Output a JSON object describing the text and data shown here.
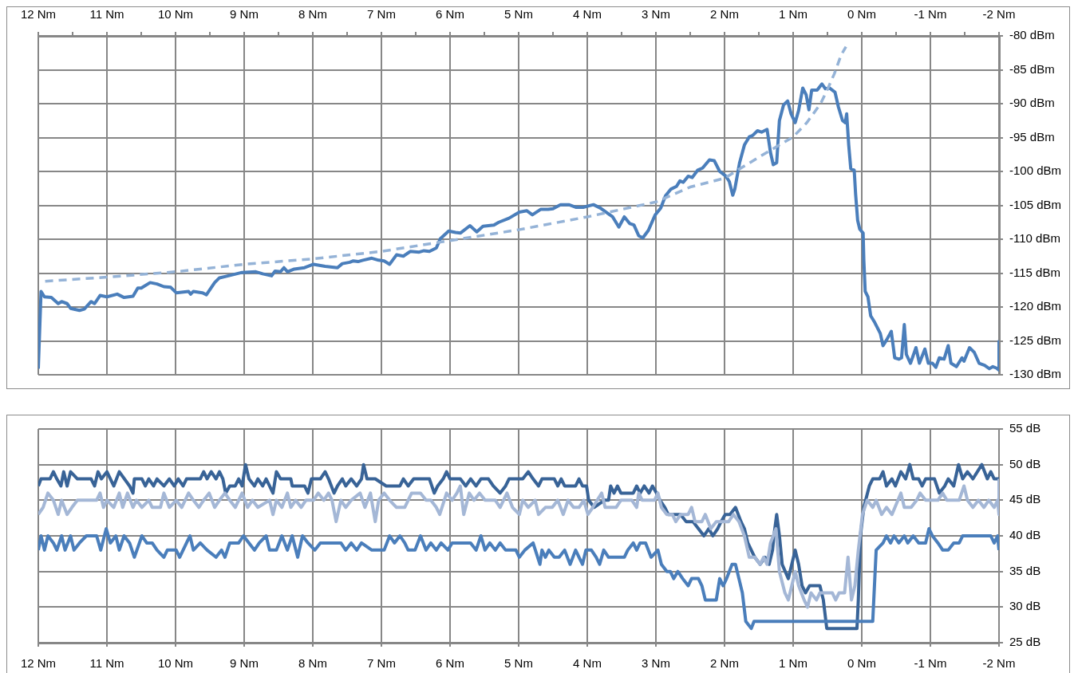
{
  "chart_data": [
    {
      "type": "line",
      "grid": true,
      "xlim": [
        12,
        -2
      ],
      "xticks": [
        {
          "value": 12,
          "label": "12 Nm"
        },
        {
          "value": 11.5,
          "label": null
        },
        {
          "value": 11,
          "label": "11 Nm"
        },
        {
          "value": 10.5,
          "label": null
        },
        {
          "value": 10,
          "label": "10 Nm"
        },
        {
          "value": 9.5,
          "label": null
        },
        {
          "value": 9,
          "label": "9 Nm"
        },
        {
          "value": 8.5,
          "label": null
        },
        {
          "value": 8,
          "label": "8 Nm"
        },
        {
          "value": 7.5,
          "label": null
        },
        {
          "value": 7,
          "label": "7 Nm"
        },
        {
          "value": 6.5,
          "label": null
        },
        {
          "value": 6,
          "label": "6 Nm"
        },
        {
          "value": 5.5,
          "label": null
        },
        {
          "value": 5,
          "label": "5 Nm"
        },
        {
          "value": 4.5,
          "label": null
        },
        {
          "value": 4,
          "label": "4 Nm"
        },
        {
          "value": 3.5,
          "label": null
        },
        {
          "value": 3,
          "label": "3 Nm"
        },
        {
          "value": 2.5,
          "label": null
        },
        {
          "value": 2,
          "label": "2 Nm"
        },
        {
          "value": 1.5,
          "label": null
        },
        {
          "value": 1,
          "label": "1 Nm"
        },
        {
          "value": 0.5,
          "label": null
        },
        {
          "value": 0,
          "label": "0 Nm"
        },
        {
          "value": -0.5,
          "label": null
        },
        {
          "value": -1,
          "label": "-1 Nm"
        },
        {
          "value": -1.5,
          "label": null
        },
        {
          "value": -2,
          "label": "-2 Nm"
        }
      ],
      "ylim": [
        -130,
        -80
      ],
      "yticks": [
        {
          "value": -130,
          "label": "-130 dBm"
        },
        {
          "value": -125,
          "label": "-125 dBm"
        },
        {
          "value": -120,
          "label": "-120 dBm"
        },
        {
          "value": -115,
          "label": "-115 dBm"
        },
        {
          "value": -110,
          "label": "-110 dBm"
        },
        {
          "value": -105,
          "label": "-105 dBm"
        },
        {
          "value": -100,
          "label": "-100 dBm"
        },
        {
          "value": -95,
          "label": "-95 dBm"
        },
        {
          "value": -90,
          "label": "-90 dBm"
        },
        {
          "value": -85,
          "label": "-85 dBm"
        },
        {
          "value": -80,
          "label": "-80 dBm"
        }
      ],
      "series": [
        {
          "color": "#4a7ebb",
          "x": [
            12,
            11.96,
            11.91,
            11.81,
            11.71,
            11.66,
            11.58,
            11.53,
            11.4,
            11.33,
            11.23,
            11.18,
            11.1,
            11,
            10.85,
            10.75,
            10.62,
            10.55,
            10.5,
            10.37,
            10.27,
            10.17,
            10.07,
            9.99,
            9.81,
            9.78,
            9.74,
            9.61,
            9.55,
            9.43,
            9.36,
            9.23,
            9.03,
            8.83,
            8.73,
            8.6,
            8.55,
            8.47,
            8.42,
            8.37,
            8.27,
            8.12,
            7.99,
            7.82,
            7.64,
            7.57,
            7.46,
            7.41,
            7.34,
            7.27,
            7.14,
            7.04,
            6.96,
            6.88,
            6.78,
            6.68,
            6.58,
            6.45,
            6.38,
            6.3,
            6.2,
            6.14,
            6.02,
            5.92,
            5.85,
            5.71,
            5.61,
            5.52,
            5.44,
            5.36,
            5.29,
            5.14,
            4.99,
            4.88,
            4.8,
            4.68,
            4.57,
            4.5,
            4.39,
            4.27,
            4.16,
            4.06,
            3.91,
            3.81,
            3.7,
            3.63,
            3.54,
            3.46,
            3.38,
            3.32,
            3.25,
            3.19,
            3.11,
            3.01,
            2.93,
            2.86,
            2.78,
            2.7,
            2.65,
            2.6,
            2.53,
            2.47,
            2.39,
            2.32,
            2.22,
            2.15,
            2.07,
            1.98,
            1.93,
            1.88,
            1.85,
            1.78,
            1.71,
            1.64,
            1.59,
            1.52,
            1.46,
            1.38,
            1.33,
            1.29,
            1.24,
            1.2,
            1.14,
            1.08,
            1.03,
            0.97,
            0.92,
            0.86,
            0.81,
            0.77,
            0.73,
            0.65,
            0.58,
            0.53,
            0.47,
            0.39,
            0.34,
            0.28,
            0.24,
            0.22,
            0.19,
            0.16,
            0.11,
            0.09,
            0.06,
            0.03,
            -0.02,
            -0.03,
            -0.05,
            -0.09,
            -0.13,
            -0.19,
            -0.27,
            -0.31,
            -0.36,
            -0.43,
            -0.48,
            -0.54,
            -0.58,
            -0.62,
            -0.65,
            -0.71,
            -0.79,
            -0.84,
            -0.92,
            -0.97,
            -1.03,
            -1.08,
            -1.13,
            -1.2,
            -1.26,
            -1.3,
            -1.38,
            -1.46,
            -1.49,
            -1.57,
            -1.64,
            -1.71,
            -1.79,
            -1.86,
            -1.91,
            -1.96,
            -2,
            -2
          ],
          "values": [
            -129.1,
            -117.7,
            -118.5,
            -118.6,
            -119.5,
            -119.2,
            -119.5,
            -120.2,
            -120.5,
            -120.3,
            -119.2,
            -119.5,
            -118.3,
            -118.5,
            -118.1,
            -118.6,
            -118.4,
            -117.2,
            -117.2,
            -116.4,
            -116.6,
            -117,
            -117.1,
            -117.9,
            -117.7,
            -118.1,
            -117.7,
            -117.9,
            -118.2,
            -116.4,
            -115.7,
            -115.4,
            -114.9,
            -114.8,
            -115.1,
            -115.4,
            -114.7,
            -114.8,
            -114.2,
            -114.8,
            -114.4,
            -114.2,
            -113.7,
            -114,
            -114.2,
            -113.6,
            -113.4,
            -113.2,
            -113.3,
            -113.1,
            -112.8,
            -113.1,
            -113.2,
            -113.7,
            -112.3,
            -112.5,
            -111.8,
            -111.9,
            -111.7,
            -111.8,
            -111.3,
            -109.9,
            -108.8,
            -109,
            -109.1,
            -108,
            -108.9,
            -108.1,
            -108,
            -107.9,
            -107.5,
            -106.9,
            -106,
            -105.8,
            -106.4,
            -105.6,
            -105.6,
            -105.5,
            -104.9,
            -104.9,
            -105.3,
            -105.3,
            -104.9,
            -105.4,
            -106.2,
            -106.7,
            -108.2,
            -106.7,
            -107.7,
            -107.9,
            -109.5,
            -109.8,
            -108.7,
            -106.4,
            -105.4,
            -103.6,
            -102.6,
            -102.2,
            -101.4,
            -101.6,
            -100.7,
            -100.9,
            -99.8,
            -99.5,
            -98.3,
            -98.4,
            -100,
            -100.7,
            -101.5,
            -103.5,
            -102.6,
            -98.7,
            -96.1,
            -94.9,
            -94.7,
            -94,
            -94.2,
            -93.8,
            -97.2,
            -99,
            -98.7,
            -92.5,
            -90.2,
            -89.6,
            -91.5,
            -92.8,
            -91,
            -87.7,
            -88.7,
            -90.9,
            -88,
            -88,
            -87.1,
            -87.8,
            -87.7,
            -88.3,
            -90.5,
            -92.5,
            -92.8,
            -91.5,
            -96.1,
            -99.6,
            -99.8,
            -103.3,
            -107.2,
            -108.5,
            -109.1,
            -113.1,
            -117.7,
            -118.5,
            -121.3,
            -122.3,
            -123.9,
            -125.7,
            -124.9,
            -123.6,
            -127.5,
            -127.7,
            -127.5,
            -122.6,
            -127,
            -128.3,
            -126,
            -128.3,
            -126.2,
            -128.3,
            -128.3,
            -128.9,
            -127.5,
            -127.7,
            -125.7,
            -128.3,
            -128.8,
            -127.5,
            -128,
            -126,
            -126.7,
            -128.3,
            -128.6,
            -129.1,
            -128.8,
            -129,
            -129.3,
            -124.9
          ]
        },
        {
          "type": "line",
          "line_style": "dashed",
          "color": "#95b3d7",
          "x": [
            11.9,
            11,
            10,
            9,
            8,
            7,
            6,
            5,
            4,
            3,
            2.5,
            2,
            1.5,
            1,
            0.8,
            0.6,
            0.5,
            0.4,
            0.3,
            0.23
          ],
          "values": [
            -116.2,
            -115.6,
            -114.8,
            -113.7,
            -112.9,
            -111.8,
            -110.2,
            -108.6,
            -106.7,
            -104.5,
            -102.3,
            -101,
            -97.9,
            -94.9,
            -92.8,
            -90,
            -87.9,
            -85.6,
            -82.8,
            -81.6
          ]
        }
      ]
    },
    {
      "type": "line",
      "grid": true,
      "xlim": [
        12,
        -2
      ],
      "xticks": [
        {
          "value": 12,
          "label": "12 Nm"
        },
        {
          "value": 11,
          "label": "11 Nm"
        },
        {
          "value": 10,
          "label": "10 Nm"
        },
        {
          "value": 9,
          "label": "9 Nm"
        },
        {
          "value": 8,
          "label": "8 Nm"
        },
        {
          "value": 7,
          "label": "7 Nm"
        },
        {
          "value": 6,
          "label": "6 Nm"
        },
        {
          "value": 5,
          "label": "5 Nm"
        },
        {
          "value": 4,
          "label": "4 Nm"
        },
        {
          "value": 3,
          "label": "3 Nm"
        },
        {
          "value": 2,
          "label": "2 Nm"
        },
        {
          "value": 1,
          "label": "1 Nm"
        },
        {
          "value": 0,
          "label": "0 Nm"
        },
        {
          "value": -1,
          "label": "-1 Nm"
        },
        {
          "value": -2,
          "label": "-2 Nm"
        }
      ],
      "ylim": [
        25,
        55
      ],
      "yticks": [
        {
          "value": 25,
          "label": "25 dB"
        },
        {
          "value": 30,
          "label": "30 dB"
        },
        {
          "value": 35,
          "label": "35 dB"
        },
        {
          "value": 40,
          "label": "40 dB"
        },
        {
          "value": 45,
          "label": "45 dB"
        },
        {
          "value": 50,
          "label": "50 dB"
        },
        {
          "value": 55,
          "label": "55 dB"
        }
      ],
      "series": [
        {
          "color": "#386397",
          "x": [
            12,
            11.96,
            11.83,
            11.78,
            11.73,
            11.67,
            11.63,
            11.58,
            11.53,
            11.43,
            11.23,
            11.18,
            11.13,
            11.08,
            11,
            10.9,
            10.82,
            10.67,
            10.62,
            10.6,
            10.49,
            10.44,
            10.39,
            10.32,
            10.27,
            10.17,
            10.09,
            10.02,
            9.96,
            9.89,
            9.84,
            9.64,
            9.59,
            9.54,
            9.48,
            9.41,
            9.36,
            9.31,
            9.27,
            9.21,
            9.13,
            9.08,
            9.03,
            8.98,
            8.93,
            8.85,
            8.8,
            8.73,
            8.68,
            8.63,
            8.58,
            8.53,
            8.47,
            8.32,
            8.3,
            8.12,
            8.07,
            8.02,
            7.89,
            7.82,
            7.77,
            7.69,
            7.64,
            7.57,
            7.52,
            7.44,
            7.36,
            7.29,
            7.26,
            7.21,
            7.09,
            6.93,
            6.73,
            6.68,
            6.61,
            6.53,
            6.3,
            6.23,
            6.18,
            6.1,
            6.05,
            6,
            5.85,
            5.77,
            5.7,
            5.62,
            5.55,
            5.44,
            5.37,
            5.27,
            5.19,
            5.14,
            4.94,
            4.86,
            4.79,
            4.71,
            4.66,
            4.48,
            4.43,
            4.38,
            4.33,
            4.17,
            4.12,
            4.07,
            4.01,
            3.98,
            3.9,
            3.75,
            3.69,
            3.66,
            3.61,
            3.56,
            3.51,
            3.41,
            3.33,
            3.28,
            3.23,
            3.17,
            3.1,
            3.05,
            2.99,
            2.94,
            2.87,
            2.82,
            2.64,
            2.56,
            2.46,
            2.38,
            2.3,
            2.23,
            2.17,
            2.1,
            2.05,
            1.99,
            1.92,
            1.84,
            1.76,
            1.71,
            1.66,
            1.61,
            1.56,
            1.48,
            1.41,
            1.35,
            1.3,
            1.28,
            1.24,
            1.2,
            1.16,
            1.07,
            1.02,
            0.97,
            0.92,
            0.87,
            0.82,
            0.76,
            0.61,
            0.56,
            0.51,
            0.07,
            0.05,
            0.02,
            -0.03,
            -0.11,
            -0.16,
            -0.26,
            -0.31,
            -0.36,
            -0.44,
            -0.49,
            -0.57,
            -0.64,
            -0.7,
            -0.75,
            -0.83,
            -0.88,
            -0.93,
            -1.06,
            -1.13,
            -1.21,
            -1.26,
            -1.34,
            -1.41,
            -1.47,
            -1.54,
            -1.62,
            -1.75,
            -1.83,
            -1.88,
            -1.93,
            -2
          ],
          "values": [
            47,
            48,
            48,
            49,
            48,
            47,
            49,
            47,
            49,
            48,
            48,
            47,
            49,
            48,
            49,
            47,
            49,
            47,
            46,
            48,
            48,
            47,
            48,
            47,
            48,
            47,
            48,
            47,
            48,
            47,
            48,
            48,
            49,
            48,
            49,
            48,
            49,
            48,
            46,
            47,
            47,
            48,
            47,
            50,
            48,
            47,
            48,
            47,
            48,
            47,
            46,
            49,
            48,
            48,
            47,
            47,
            46,
            48,
            48,
            49,
            48,
            46,
            47,
            48,
            47,
            48,
            47,
            48,
            50,
            48,
            48,
            47,
            47,
            48,
            47,
            48,
            48,
            46,
            47,
            48,
            49,
            48,
            48,
            47,
            48,
            47,
            48,
            48,
            47,
            46,
            47,
            48,
            48,
            49,
            48,
            47,
            48,
            48,
            47,
            48,
            47,
            47,
            48,
            47,
            47,
            45,
            44,
            45,
            45,
            47,
            46,
            47,
            46,
            46,
            46,
            47,
            46,
            47,
            46,
            47,
            46,
            45,
            44,
            43,
            43,
            42,
            42,
            41,
            40,
            41,
            40,
            41,
            42,
            43,
            43,
            44,
            42,
            41,
            39,
            38,
            37,
            36,
            37,
            36,
            38,
            40,
            43,
            40,
            36,
            34,
            36,
            38,
            36,
            33,
            32,
            33,
            33,
            31,
            27,
            27,
            31,
            40,
            44,
            47,
            48,
            48,
            49,
            47,
            48,
            47,
            49,
            48,
            50,
            48,
            48,
            47,
            48,
            48,
            46,
            47,
            48,
            47,
            50,
            48,
            49,
            48,
            50,
            48,
            49,
            48,
            48
          ]
        },
        {
          "color": "#4a7ebb",
          "x": [
            12,
            11.96,
            11.91,
            11.86,
            11.78,
            11.73,
            11.66,
            11.61,
            11.53,
            11.48,
            11.4,
            11.3,
            11.15,
            11.09,
            11.01,
            10.95,
            10.87,
            10.82,
            10.75,
            10.67,
            10.6,
            10.49,
            10.42,
            10.34,
            10.27,
            10.17,
            10.12,
            9.99,
            9.94,
            9.84,
            9.79,
            9.74,
            9.64,
            9.54,
            9.41,
            9.33,
            9.28,
            9.21,
            9.08,
            9.01,
            8.93,
            8.85,
            8.78,
            8.68,
            8.63,
            8.53,
            8.45,
            8.37,
            8.3,
            8.22,
            8.15,
            8.07,
            7.97,
            7.89,
            7.59,
            7.52,
            7.44,
            7.36,
            7.29,
            7.14,
            6.96,
            6.88,
            6.81,
            6.73,
            6.66,
            6.61,
            6.51,
            6.43,
            6.35,
            6.28,
            6.2,
            6.13,
            6.03,
            5.97,
            5.7,
            5.62,
            5.55,
            5.49,
            5.42,
            5.34,
            5.27,
            5.19,
            5.04,
            4.99,
            4.91,
            4.79,
            4.69,
            4.66,
            4.61,
            4.56,
            4.48,
            4.41,
            4.33,
            4.25,
            4.17,
            4.12,
            4.07,
            4.02,
            3.94,
            3.87,
            3.82,
            3.76,
            3.69,
            3.46,
            3.41,
            3.33,
            3.28,
            3.23,
            3.15,
            3.07,
            2.97,
            2.92,
            2.84,
            2.79,
            2.74,
            2.68,
            2.61,
            2.53,
            2.48,
            2.38,
            2.33,
            2.28,
            2.12,
            2.07,
            2.02,
            1.97,
            1.89,
            1.84,
            1.79,
            1.74,
            1.69,
            1.61,
            1.57,
            -0.16,
            -0.21,
            -0.31,
            -0.36,
            -0.42,
            -0.47,
            -0.54,
            -0.62,
            -0.67,
            -0.75,
            -0.83,
            -0.93,
            -0.98,
            -1.03,
            -1.11,
            -1.18,
            -1.26,
            -1.34,
            -1.42,
            -1.47,
            -1.88,
            -1.93,
            -1.98,
            -2
          ],
          "values": [
            38,
            40,
            38,
            40,
            39,
            38,
            40,
            38,
            40,
            38,
            39,
            40,
            40,
            38,
            41,
            39,
            40,
            38,
            40,
            39,
            37,
            40,
            39,
            39,
            38,
            37,
            38,
            38,
            37,
            39,
            40,
            38,
            39,
            38,
            37,
            38,
            37,
            39,
            39,
            40,
            39,
            38,
            39,
            40,
            38,
            38,
            40,
            38,
            40,
            37,
            40,
            39,
            38,
            39,
            39,
            38,
            39,
            38,
            39,
            38,
            38,
            40,
            39,
            40,
            39,
            38,
            38,
            40,
            38,
            39,
            38,
            39,
            38,
            39,
            39,
            38,
            40,
            38,
            39,
            38,
            39,
            38,
            38,
            37,
            38,
            39,
            36,
            38,
            37,
            38,
            37,
            37,
            38,
            36,
            38,
            37,
            36,
            38,
            38,
            37,
            36,
            38,
            37,
            37,
            38,
            39,
            38,
            39,
            39,
            37,
            38,
            36,
            35,
            35,
            34,
            35,
            34,
            33,
            34,
            34,
            33,
            31,
            31,
            34,
            33,
            34,
            36,
            36,
            34,
            32,
            28,
            27,
            28,
            28,
            38,
            39,
            40,
            39,
            40,
            39,
            40,
            39,
            40,
            39,
            39,
            41,
            40,
            39,
            38,
            38,
            39,
            39,
            40,
            40,
            39,
            40,
            38
          ]
        },
        {
          "color": "#a4b7d6",
          "x": [
            12,
            11.93,
            11.86,
            11.78,
            11.71,
            11.66,
            11.58,
            11.51,
            11.43,
            11.15,
            11.1,
            11.05,
            11,
            10.9,
            10.82,
            10.77,
            10.7,
            10.62,
            10.57,
            10.49,
            10.39,
            10.34,
            10.22,
            10.17,
            10.09,
            9.99,
            9.91,
            9.81,
            9.74,
            9.66,
            9.59,
            9.51,
            9.43,
            9.36,
            9.28,
            9.21,
            9.13,
            9.03,
            8.95,
            8.88,
            8.8,
            8.63,
            8.58,
            8.53,
            8.45,
            8.37,
            8.32,
            8.25,
            8.17,
            8.1,
            7.99,
            7.92,
            7.84,
            7.77,
            7.72,
            7.66,
            7.59,
            7.52,
            7.44,
            7.31,
            7.24,
            7.16,
            7.09,
            7.04,
            6.96,
            6.88,
            6.78,
            6.66,
            6.56,
            6.43,
            6.35,
            6.28,
            6.2,
            6.15,
            6.05,
            5.97,
            5.9,
            5.85,
            5.8,
            5.72,
            5.65,
            5.57,
            5.49,
            5.34,
            5.27,
            5.17,
            5.09,
            4.99,
            4.94,
            4.86,
            4.76,
            4.71,
            4.61,
            4.51,
            4.43,
            4.35,
            4.28,
            4.2,
            4.12,
            4.05,
            3.99,
            3.92,
            3.79,
            3.74,
            3.58,
            3.51,
            3.35,
            3.28,
            3.25,
            3.2,
            3.02,
            2.97,
            2.92,
            2.84,
            2.76,
            2.71,
            2.64,
            2.53,
            2.48,
            2.43,
            2.33,
            2.28,
            2.2,
            2.12,
            2.05,
            1.94,
            1.87,
            1.79,
            1.71,
            1.64,
            1.56,
            1.48,
            1.43,
            1.38,
            1.33,
            1.25,
            1.2,
            1.12,
            1.07,
            1.02,
            0.97,
            0.92,
            0.84,
            0.79,
            0.74,
            0.66,
            0.61,
            0.53,
            0.43,
            0.38,
            0.33,
            0.25,
            0.2,
            0.15,
            0.1,
            0.05,
            -0.01,
            -0.08,
            -0.16,
            -0.21,
            -0.29,
            -0.36,
            -0.44,
            -0.57,
            -0.62,
            -0.72,
            -0.8,
            -0.85,
            -0.93,
            -1.11,
            -1.18,
            -1.24,
            -1.42,
            -1.49,
            -1.54,
            -1.62,
            -1.7,
            -1.78,
            -1.85,
            -1.93,
            -1.98,
            -2,
            -2
          ],
          "values": [
            43,
            44,
            46,
            45,
            43,
            45,
            43,
            44,
            45,
            45,
            46,
            44,
            45,
            44,
            46,
            44,
            46,
            44,
            45,
            44,
            45,
            44,
            44,
            46,
            44,
            45,
            44,
            46,
            45,
            44,
            45,
            46,
            44,
            45,
            46,
            45,
            44,
            46,
            44,
            45,
            44,
            45,
            43,
            45,
            44,
            46,
            44,
            45,
            44,
            45,
            45,
            46,
            45,
            46,
            45,
            42,
            45,
            44,
            45,
            46,
            44,
            46,
            42,
            45,
            46,
            45,
            44,
            44,
            46,
            46,
            45,
            45,
            44,
            43,
            46,
            45,
            46,
            47,
            43,
            46,
            45,
            46,
            45,
            45,
            44,
            46,
            44,
            43,
            45,
            44,
            45,
            43,
            44,
            44,
            45,
            43,
            45,
            44,
            44,
            45,
            43,
            44,
            46,
            44,
            44,
            45,
            45,
            44,
            46,
            45,
            45,
            46,
            44,
            43,
            43,
            42,
            43,
            43,
            44,
            42,
            42,
            43,
            41,
            42,
            42,
            42,
            43,
            42,
            40,
            37,
            37,
            36,
            37,
            36,
            39,
            41,
            35,
            32,
            31,
            33,
            35,
            33,
            31,
            30,
            32,
            31,
            32,
            32,
            32,
            31,
            32,
            32,
            37,
            31,
            33,
            38,
            43,
            45,
            44,
            45,
            43,
            44,
            43,
            46,
            44,
            44,
            45,
            46,
            45,
            45,
            46,
            45,
            45,
            47,
            45,
            44,
            45,
            44,
            45,
            44,
            45,
            43,
            48
          ]
        }
      ]
    }
  ]
}
